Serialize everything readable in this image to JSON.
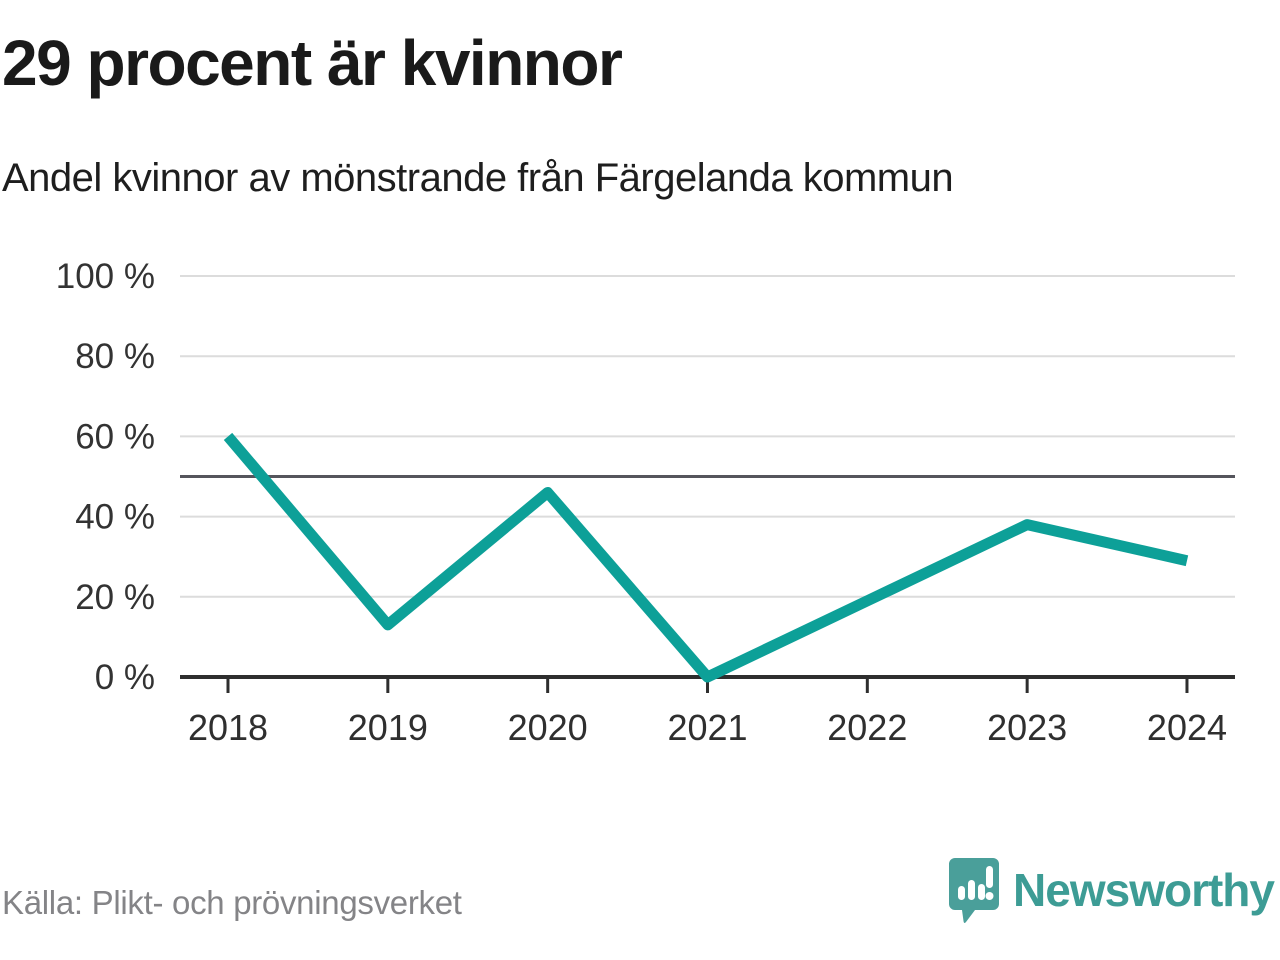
{
  "header": {
    "title": "29 procent är kvinnor",
    "subtitle": "Andel kvinnor av mönstrande från Färgelanda kommun"
  },
  "footer": {
    "source": "Källa: Plikt- och prövningsverket",
    "brand": "Newsworthy"
  },
  "colors": {
    "line": "#0da098",
    "grid": "#dcdcdc",
    "ref_line": "#55555c",
    "axis": "#2e2e2e",
    "axis_label": "#333333",
    "brand_teal": "#3d9c95",
    "logo_fill": "#4a9f9a"
  },
  "chart_data": {
    "type": "line",
    "title": "29 procent är kvinnor",
    "subtitle": "Andel kvinnor av mönstrande från Färgelanda kommun",
    "categories": [
      "2018",
      "2019",
      "2020",
      "2021",
      "2022",
      "2023",
      "2024"
    ],
    "values": [
      60,
      13,
      46,
      0,
      19,
      38,
      29
    ],
    "series_name": "Andel kvinnor av mönstrande",
    "unit": "%",
    "ylim": [
      0,
      100
    ],
    "yticks": [
      {
        "value": 0,
        "label": "0 %"
      },
      {
        "value": 20,
        "label": "20 %"
      },
      {
        "value": 40,
        "label": "40 %"
      },
      {
        "value": 60,
        "label": "60 %"
      },
      {
        "value": 80,
        "label": "80 %"
      },
      {
        "value": 100,
        "label": "100 %"
      }
    ],
    "ref_line": {
      "value": 50
    },
    "grid": true,
    "legend": false
  }
}
